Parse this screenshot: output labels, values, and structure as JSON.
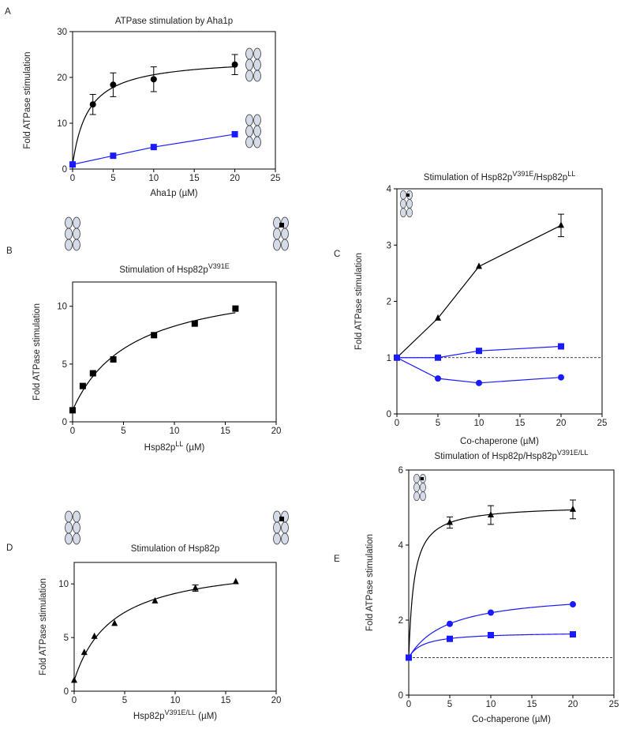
{
  "chart_data": [
    {
      "type": "scatter",
      "panel": "A",
      "title": [
        {
          "text": "ATPase stimulation by Aha1p"
        }
      ],
      "xlabel": [
        {
          "text": "Aha1p (µM)"
        }
      ],
      "ylabel": "Fold ATPase stimulation",
      "xlim": [
        0,
        25
      ],
      "xticks": [
        0,
        5,
        10,
        15,
        20,
        25
      ],
      "ylim": [
        0,
        30
      ],
      "yticks": [
        0,
        10,
        20,
        30
      ],
      "series": [
        {
          "color": "#000000",
          "marker": "circle",
          "line": "fit",
          "x": [
            0,
            2.5,
            5,
            10,
            20
          ],
          "values": [
            1,
            14.1,
            18.4,
            19.6,
            22.8
          ],
          "errors": [
            null,
            2.2,
            2.6,
            2.7,
            2.2
          ]
        },
        {
          "color": "#1a1aff",
          "marker": "square",
          "line": "straight",
          "x": [
            0,
            5,
            10,
            20
          ],
          "values": [
            1,
            2.9,
            4.8,
            7.6
          ]
        }
      ]
    },
    {
      "type": "scatter",
      "panel": "B",
      "title": [
        {
          "text": "Stimulation of Hsp82p"
        },
        {
          "text": "V391E",
          "sup": true
        }
      ],
      "xlabel": [
        {
          "text": "Hsp82p"
        },
        {
          "text": "LL",
          "sup": true
        },
        {
          "text": " (µM)"
        }
      ],
      "ylabel": "Fold ATPase stimulation",
      "xlim": [
        0,
        20
      ],
      "xticks": [
        0,
        5,
        10,
        15,
        20
      ],
      "ylim": [
        0,
        12.1
      ],
      "yticks": [
        0,
        5,
        10
      ],
      "series": [
        {
          "color": "#000000",
          "marker": "square",
          "line": "fit",
          "x": [
            0,
            1,
            2,
            4,
            8,
            12,
            16
          ],
          "values": [
            1,
            3.1,
            4.2,
            5.4,
            7.5,
            8.5,
            9.8
          ]
        }
      ]
    },
    {
      "type": "scatter",
      "panel": "C",
      "title": [
        {
          "text": "Stimulation of Hsp82p"
        },
        {
          "text": "V391E",
          "sup": true
        },
        {
          "text": "/Hsp82p"
        },
        {
          "text": "LL",
          "sup": true
        }
      ],
      "xlabel": [
        {
          "text": "Co-chaperone (µM)"
        }
      ],
      "ylabel": "Fold ATPase stimulation",
      "xlim": [
        0,
        25
      ],
      "xticks": [
        0,
        5,
        10,
        15,
        20,
        25
      ],
      "ylim": [
        0,
        4
      ],
      "yticks": [
        0,
        1,
        2,
        3,
        4
      ],
      "refline": 1,
      "series": [
        {
          "color": "#000000",
          "marker": "triangle",
          "line": "straight",
          "x": [
            0,
            5,
            10,
            20
          ],
          "values": [
            1,
            1.7,
            2.62,
            3.35
          ],
          "errors": [
            null,
            null,
            null,
            0.2
          ]
        },
        {
          "color": "#1a1aff",
          "marker": "square",
          "line": "straight",
          "x": [
            0,
            5,
            10,
            20
          ],
          "values": [
            1,
            1,
            1.12,
            1.2
          ]
        },
        {
          "color": "#1a1aff",
          "marker": "circle",
          "line": "straight",
          "x": [
            0,
            5,
            10,
            20
          ],
          "values": [
            1,
            0.63,
            0.55,
            0.65
          ]
        }
      ]
    },
    {
      "type": "scatter",
      "panel": "D",
      "title": [
        {
          "text": "Stimulation of Hsp82p"
        }
      ],
      "xlabel": [
        {
          "text": "Hsp82p"
        },
        {
          "text": "V391E/LL",
          "sup": true
        },
        {
          "text": " (µM)"
        }
      ],
      "ylabel": "Fold ATPase stimulation",
      "xlim": [
        0,
        20
      ],
      "xticks": [
        0,
        5,
        10,
        15,
        20
      ],
      "ylim": [
        0,
        12
      ],
      "yticks": [
        0,
        5,
        10
      ],
      "series": [
        {
          "color": "#000000",
          "marker": "triangle",
          "line": "fit",
          "x": [
            0,
            1,
            2,
            4,
            8,
            12,
            16
          ],
          "values": [
            1,
            3.6,
            5.1,
            6.3,
            8.4,
            9.6,
            10.2
          ],
          "errors": [
            null,
            null,
            null,
            null,
            null,
            0.3,
            null
          ]
        }
      ]
    },
    {
      "type": "scatter",
      "panel": "E",
      "title": [
        {
          "text": "Stimulation of Hsp82p/Hsp82p"
        },
        {
          "text": "V391E/LL",
          "sup": true
        }
      ],
      "xlabel": [
        {
          "text": "Co-chaperone (µM)"
        }
      ],
      "ylabel": "Fold ATPase stimulation",
      "xlim": [
        0,
        25
      ],
      "xticks": [
        0,
        5,
        10,
        15,
        20,
        25
      ],
      "ylim": [
        0,
        6
      ],
      "yticks": [
        0,
        2,
        4,
        6
      ],
      "refline": 1,
      "series": [
        {
          "color": "#000000",
          "marker": "triangle",
          "line": "fit",
          "x": [
            0,
            5,
            10,
            20
          ],
          "values": [
            1,
            4.6,
            4.8,
            4.95
          ],
          "errors": [
            null,
            0.15,
            0.25,
            0.25
          ]
        },
        {
          "color": "#1a1aff",
          "marker": "circle",
          "line": "fit",
          "x": [
            0,
            5,
            10,
            20
          ],
          "values": [
            1,
            1.9,
            2.2,
            2.42
          ]
        },
        {
          "color": "#1a1aff",
          "marker": "square",
          "line": "fit",
          "x": [
            0,
            5,
            10,
            20
          ],
          "values": [
            1,
            1.5,
            1.6,
            1.62
          ]
        }
      ]
    }
  ]
}
